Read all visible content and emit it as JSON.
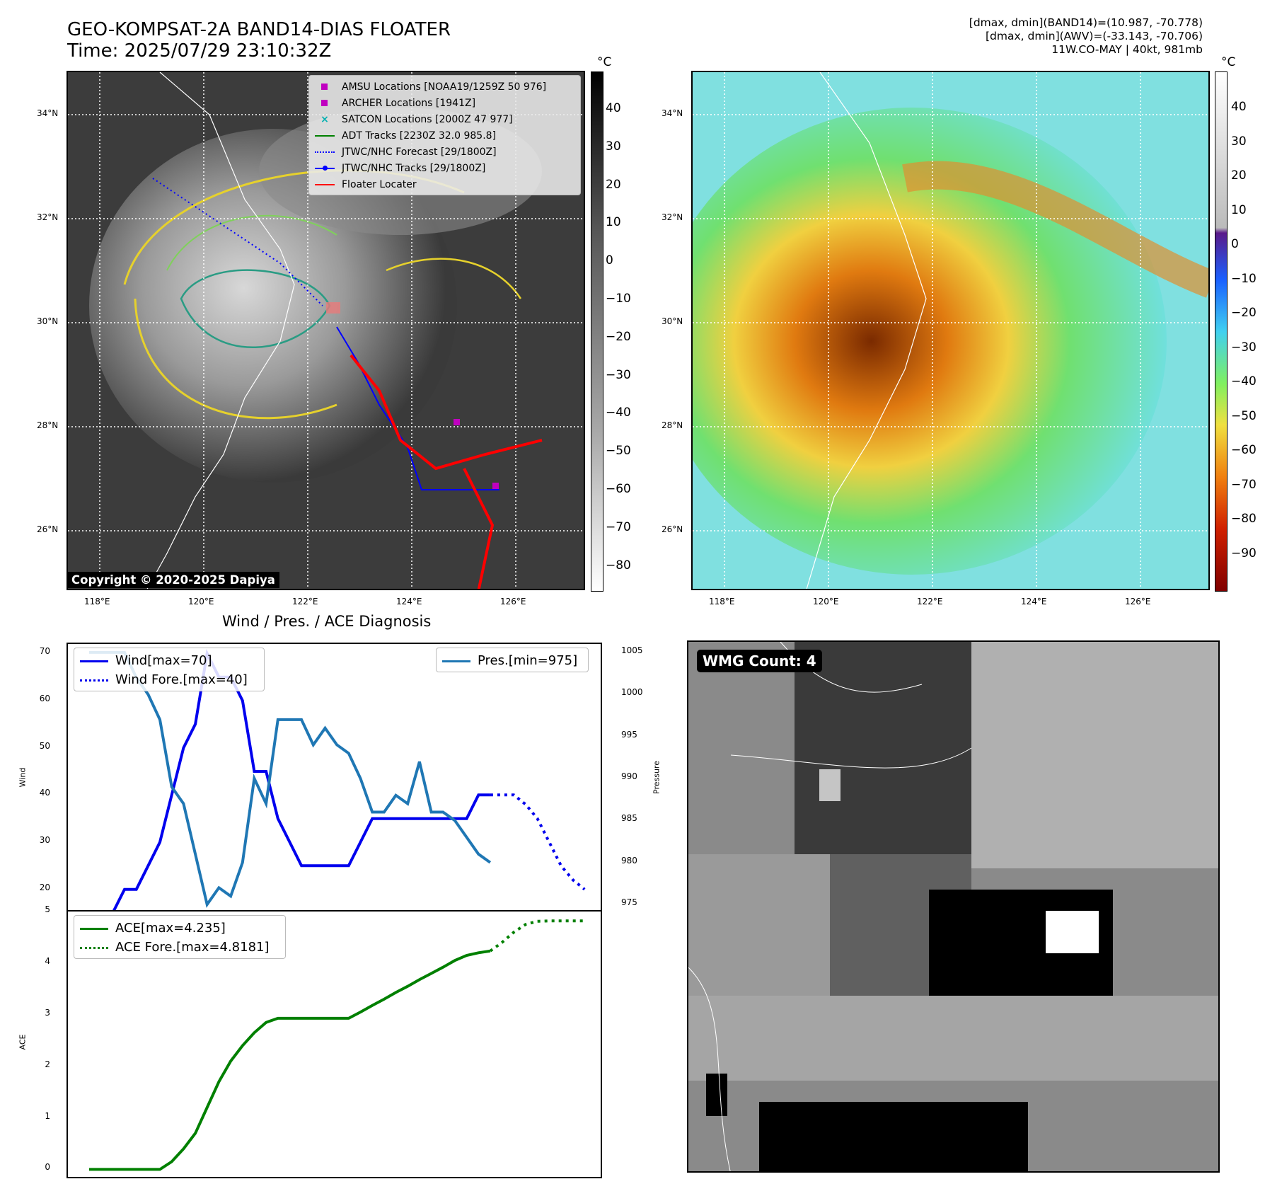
{
  "header": {
    "title_line1": "GEO-KOMPSAT-2A BAND14-DIAS FLOATER",
    "title_line2": "Time: 2025/07/29 23:10:32Z",
    "info_line1": "[dmax, dmin](BAND14)=(10.987, -70.778)",
    "info_line2": "[dmax, dmin](AWV)=(-33.143, -70.706)",
    "info_line3": "11W.CO-MAY | 40kt, 981mb"
  },
  "maps": {
    "lat_ticks": [
      "34°N",
      "32°N",
      "30°N",
      "28°N",
      "26°N"
    ],
    "lon_ticks": [
      "118°E",
      "120°E",
      "122°E",
      "124°E",
      "126°E"
    ],
    "unit": "°C",
    "ir_colorbar_ticks": [
      "40",
      "30",
      "20",
      "10",
      "0",
      "−10",
      "−20",
      "−30",
      "−40",
      "−50",
      "−60",
      "−70",
      "−80"
    ],
    "wv_colorbar_ticks": [
      "40",
      "30",
      "20",
      "10",
      "0",
      "−10",
      "−20",
      "−30",
      "−40",
      "−50",
      "−60",
      "−70",
      "−80",
      "−90"
    ],
    "copyright": "Copyright © 2020-2025 Dapiya",
    "legend": [
      {
        "label": "AMSU Locations [NOAA19/1259Z 50 976]",
        "symbol": "square",
        "color": "#c000c0"
      },
      {
        "label": "ARCHER Locations [1941Z]",
        "symbol": "square",
        "color": "#c000c0"
      },
      {
        "label": "SATCON Locations [2000Z 47 977]",
        "symbol": "x",
        "color": "#00b0b0"
      },
      {
        "label": "ADT Tracks [2230Z 32.0 985.8]",
        "symbol": "line",
        "color": "#008000"
      },
      {
        "label": "JTWC/NHC Forecast [29/1800Z]",
        "symbol": "dotted",
        "color": "#0000ff"
      },
      {
        "label": "JTWC/NHC Tracks [29/1800Z]",
        "symbol": "line-dot",
        "color": "#0000ff"
      },
      {
        "label": "Floater Locater",
        "symbol": "line",
        "color": "#ff0000"
      }
    ]
  },
  "diagnosis": {
    "title": "Wind / Pres. / ACE Diagnosis",
    "wind_ylabel": "Wind",
    "pres_ylabel": "Pressure",
    "ace_ylabel": "ACE",
    "wind_ticks": [
      "70",
      "60",
      "50",
      "40",
      "30",
      "20"
    ],
    "pres_ticks": [
      "1005",
      "1000",
      "995",
      "990",
      "985",
      "980",
      "975"
    ],
    "ace_ticks": [
      "5",
      "4",
      "3",
      "2",
      "1",
      "0"
    ],
    "legend_wind": "Wind[max=70]",
    "legend_wind_fore": "Wind Fore.[max=40]",
    "legend_pres": "Pres.[min=975]",
    "legend_ace": "ACE[max=4.235]",
    "legend_ace_fore": "ACE Fore.[max=4.8181]",
    "colors": {
      "wind": "#0000ee",
      "pres": "#1f77b4",
      "ace": "#008000"
    }
  },
  "wmg": {
    "label": "WMG Count: 4"
  },
  "chart_data": [
    {
      "type": "line",
      "title": "Wind / Pres. / ACE Diagnosis",
      "ylabel": "Wind",
      "ylim": [
        15,
        72
      ],
      "series": [
        {
          "name": "Wind[max=70]",
          "x": [
            0,
            1,
            2,
            3,
            4,
            5,
            6,
            7,
            8,
            9,
            10,
            11,
            12,
            13,
            14,
            15,
            16,
            17,
            18,
            19,
            20,
            21,
            22,
            23,
            24,
            25,
            26,
            27,
            28,
            29,
            30,
            31,
            32,
            33,
            34
          ],
          "values": [
            15,
            15,
            15,
            20,
            20,
            25,
            30,
            40,
            50,
            55,
            70,
            65,
            65,
            60,
            45,
            45,
            35,
            30,
            25,
            25,
            25,
            25,
            25,
            30,
            35,
            35,
            35,
            35,
            35,
            35,
            35,
            35,
            35,
            40,
            40
          ]
        },
        {
          "name": "Wind Fore.[max=40]",
          "x": [
            34,
            35,
            36,
            37,
            38,
            39,
            40,
            41,
            42
          ],
          "values": [
            40,
            40,
            40,
            38,
            35,
            30,
            25,
            22,
            20
          ]
        }
      ]
    },
    {
      "type": "line",
      "ylabel": "Pressure",
      "ylim": [
        974,
        1006
      ],
      "series": [
        {
          "name": "Pres.[min=975]",
          "x": [
            0,
            1,
            2,
            3,
            4,
            5,
            6,
            7,
            8,
            9,
            10,
            11,
            12,
            13,
            14,
            15,
            16,
            17,
            18,
            19,
            20,
            21,
            22,
            23,
            24,
            25,
            26,
            27,
            28,
            29,
            30,
            31,
            32,
            33,
            34
          ],
          "values": [
            1005,
            1005,
            1005,
            1005,
            1002,
            1000,
            997,
            989,
            987,
            981,
            975,
            977,
            976,
            980,
            990,
            987,
            997,
            997,
            997,
            994,
            996,
            994,
            993,
            990,
            986,
            986,
            988,
            987,
            992,
            986,
            986,
            985,
            983,
            981,
            980
          ]
        }
      ]
    },
    {
      "type": "line",
      "ylabel": "ACE",
      "ylim": [
        -0.2,
        5
      ],
      "series": [
        {
          "name": "ACE[max=4.235]",
          "x": [
            0,
            1,
            2,
            3,
            4,
            5,
            6,
            7,
            8,
            9,
            10,
            11,
            12,
            13,
            14,
            15,
            16,
            17,
            18,
            19,
            20,
            21,
            22,
            23,
            24,
            25,
            26,
            27,
            28,
            29,
            30,
            31,
            32,
            33,
            34
          ],
          "values": [
            0,
            0,
            0,
            0,
            0,
            0,
            0,
            0.15,
            0.4,
            0.7,
            1.2,
            1.7,
            2.1,
            2.4,
            2.65,
            2.85,
            2.93,
            2.93,
            2.93,
            2.93,
            2.93,
            2.93,
            2.93,
            3.05,
            3.18,
            3.3,
            3.43,
            3.55,
            3.68,
            3.8,
            3.92,
            4.05,
            4.15,
            4.2,
            4.235
          ]
        },
        {
          "name": "ACE Fore.[max=4.8181]",
          "x": [
            34,
            35,
            36,
            37,
            38,
            39,
            40,
            41,
            42
          ],
          "values": [
            4.235,
            4.4,
            4.6,
            4.75,
            4.81,
            4.8181,
            4.8181,
            4.8181,
            4.8181
          ]
        }
      ]
    }
  ]
}
